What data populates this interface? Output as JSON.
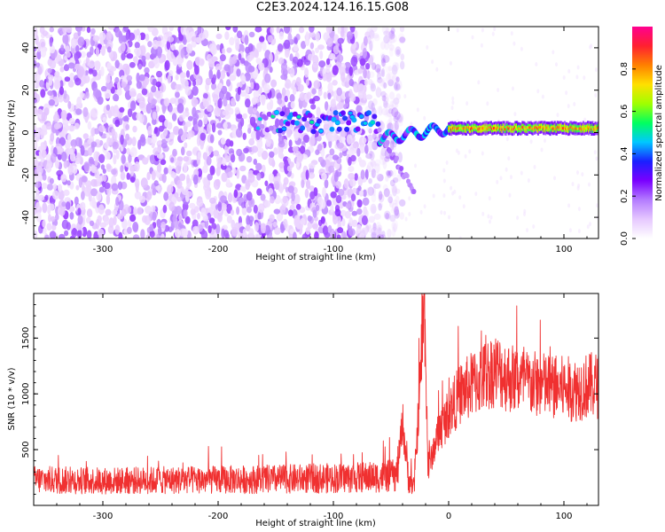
{
  "title": "C2E3.2024.124.16.15.G08",
  "colors": {
    "snr_line": "#f03030",
    "axes": "#000000",
    "background": "#ffffff",
    "noise_dots": "#8a3cf0",
    "colormap": [
      "#ffffff",
      "#e6c8ff",
      "#b47cff",
      "#7a00ff",
      "#1a20ff",
      "#00c8ff",
      "#00ff60",
      "#a0ff00",
      "#ffe000",
      "#ff8000",
      "#ff2030",
      "#ff0090"
    ]
  },
  "chart_data": [
    {
      "type": "heatmap",
      "title": "",
      "xlabel": "Height of straight line (km)",
      "ylabel": "Frequency (Hz)",
      "xlim": [
        -360,
        130
      ],
      "ylim": [
        -50,
        50
      ],
      "x_ticks": [
        -300,
        -200,
        -100,
        0,
        100
      ],
      "y_ticks": [
        -40,
        -20,
        0,
        20,
        40
      ],
      "colorbar": {
        "label": "Normalized spectral amplitude",
        "range": [
          0,
          1
        ],
        "ticks": [
          "0.0",
          "0.2",
          "0.4",
          "0.6",
          "0.8"
        ]
      },
      "features": [
        {
          "description": "scattered low-amplitude noise",
          "x_range": [
            -360,
            -40
          ],
          "y_range": [
            -50,
            50
          ],
          "amplitude": 0.12
        },
        {
          "description": "emerging signal band",
          "x_range": [
            -170,
            -60
          ],
          "frequency": 5,
          "amplitude": 0.3
        },
        {
          "description": "descending branch",
          "x_range": [
            -60,
            -30
          ],
          "frequency_from": 0,
          "frequency_to": -28,
          "amplitude": 0.15
        },
        {
          "description": "steady signal",
          "x_range": [
            0,
            130
          ],
          "frequency": 2,
          "amplitude": 0.9
        }
      ]
    },
    {
      "type": "line",
      "title": "",
      "xlabel": "Height of straight line (km)",
      "ylabel": "SNR (10 * v/v)",
      "xlim": [
        -360,
        130
      ],
      "ylim": [
        0,
        1900
      ],
      "x_ticks": [
        -300,
        -200,
        -100,
        0,
        100
      ],
      "y_ticks": [
        500,
        1000,
        1500
      ],
      "series": [
        {
          "x": [
            -360,
            -300,
            -250,
            -200,
            -150,
            -100,
            -60,
            -45,
            -40,
            -35,
            -30,
            -25,
            -21,
            -18,
            -15,
            -10,
            -5,
            0,
            10,
            20,
            30,
            40,
            50,
            60,
            70,
            80,
            90,
            100,
            110,
            120,
            130
          ],
          "y": [
            230,
            220,
            225,
            230,
            235,
            245,
            255,
            270,
            750,
            250,
            160,
            1050,
            1870,
            380,
            420,
            620,
            720,
            830,
            1000,
            1080,
            1150,
            1220,
            1160,
            1120,
            1090,
            1080,
            1060,
            1050,
            1040,
            1070,
            1080
          ]
        }
      ]
    }
  ]
}
